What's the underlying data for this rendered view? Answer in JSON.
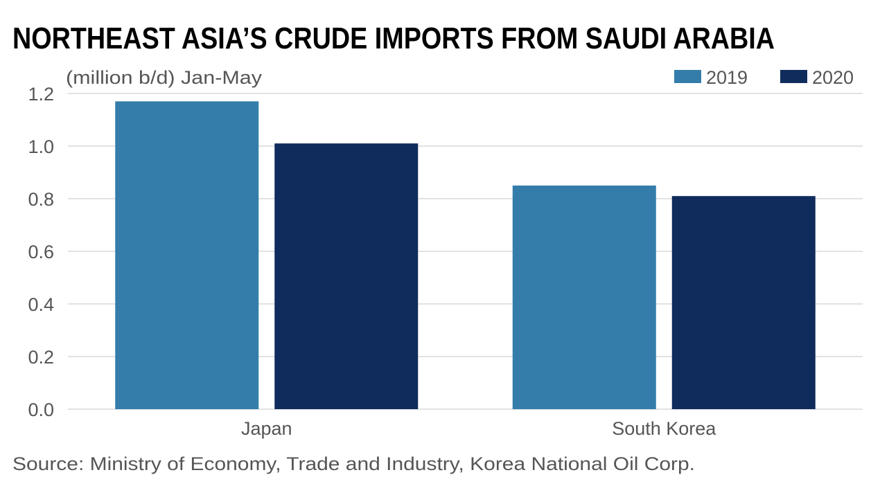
{
  "chart_data": {
    "type": "bar",
    "title": "NORTHEAST ASIA’S CRUDE IMPORTS FROM SAUDI ARABIA",
    "subtitle": "(million b/d) Jan-May",
    "ylabel": "(million b/d) Jan-May",
    "xlabel": "",
    "categories": [
      "Japan",
      "South Korea"
    ],
    "series": [
      {
        "name": "2019",
        "color": "#347daa",
        "values": [
          1.17,
          0.85
        ]
      },
      {
        "name": "2020",
        "color": "#0f2c5c",
        "values": [
          1.01,
          0.81
        ]
      }
    ],
    "ylim": [
      0,
      1.2
    ],
    "yticks": [
      "0.0",
      "0.2",
      "0.4",
      "0.6",
      "0.8",
      "1.0",
      "1.2"
    ],
    "grid": true,
    "legend_position": "top-right",
    "source": "Source: Ministry of Economy, Trade and Industry, Korea National Oil Corp."
  }
}
